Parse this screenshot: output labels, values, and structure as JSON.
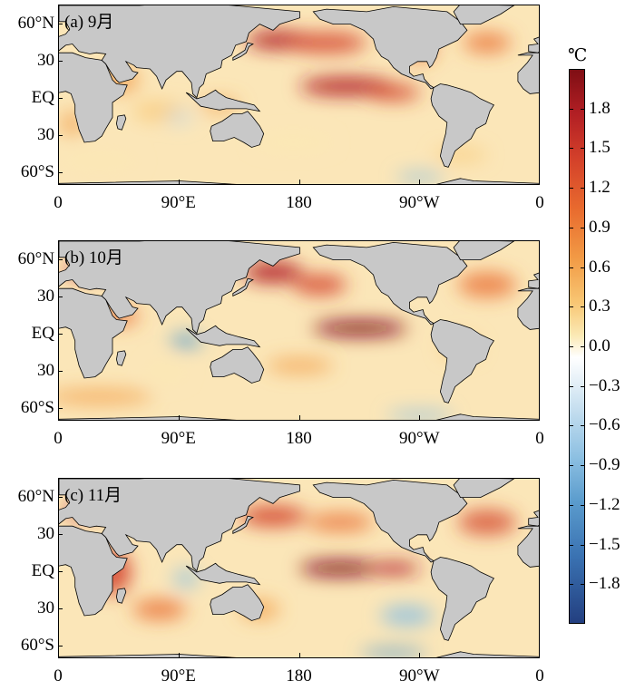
{
  "unit": "℃",
  "panels": [
    {
      "label": "(a)  9月"
    },
    {
      "label": "(b)  10月"
    },
    {
      "label": "(c)  11月"
    }
  ],
  "lat_labels": [
    "60°N",
    "30",
    "EQ",
    "30",
    "60°S"
  ],
  "lon_labels": [
    "0",
    "90°E",
    "180",
    "90°W",
    "0"
  ],
  "colorbar": {
    "ticks": [
      "1.8",
      "1.5",
      "1.2",
      "0.9",
      "0.6",
      "0.3",
      "0.0",
      "−0.3",
      "−0.6",
      "−0.9",
      "−1.2",
      "−1.5",
      "−1.8"
    ],
    "range": [
      -2.1,
      2.1
    ],
    "colors": {
      "max": "#7f0e14",
      "warm": "#e86a2e",
      "zero": "#ffffff",
      "cool": "#8dc0e2",
      "min": "#233f80"
    }
  },
  "colors": {
    "land": "#c8c8c8",
    "coast": "#000000"
  }
}
